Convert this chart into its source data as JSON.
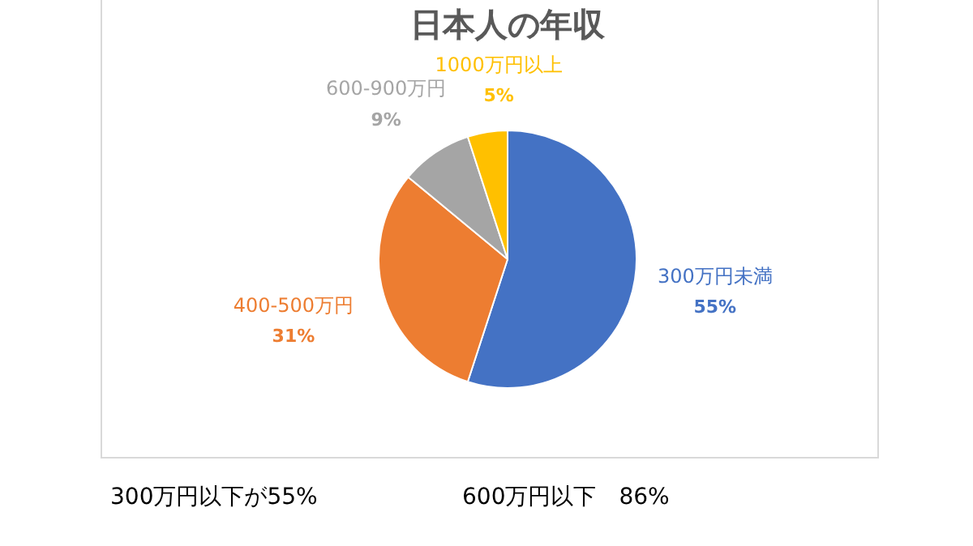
{
  "chart_data": {
    "type": "pie",
    "title": "日本人の年収",
    "categories": [
      "300万円未満",
      "400-500万円",
      "600-900万円",
      "1000万円以上"
    ],
    "values": [
      55,
      31,
      9,
      5
    ],
    "colors": [
      "#4472c4",
      "#ed7d31",
      "#a5a5a5",
      "#ffc000"
    ],
    "value_labels": [
      "55%",
      "31%",
      "9%",
      "5%"
    ],
    "legend": false,
    "annotations": [
      "300万円以下が55%",
      "600万円以下　86%"
    ]
  }
}
